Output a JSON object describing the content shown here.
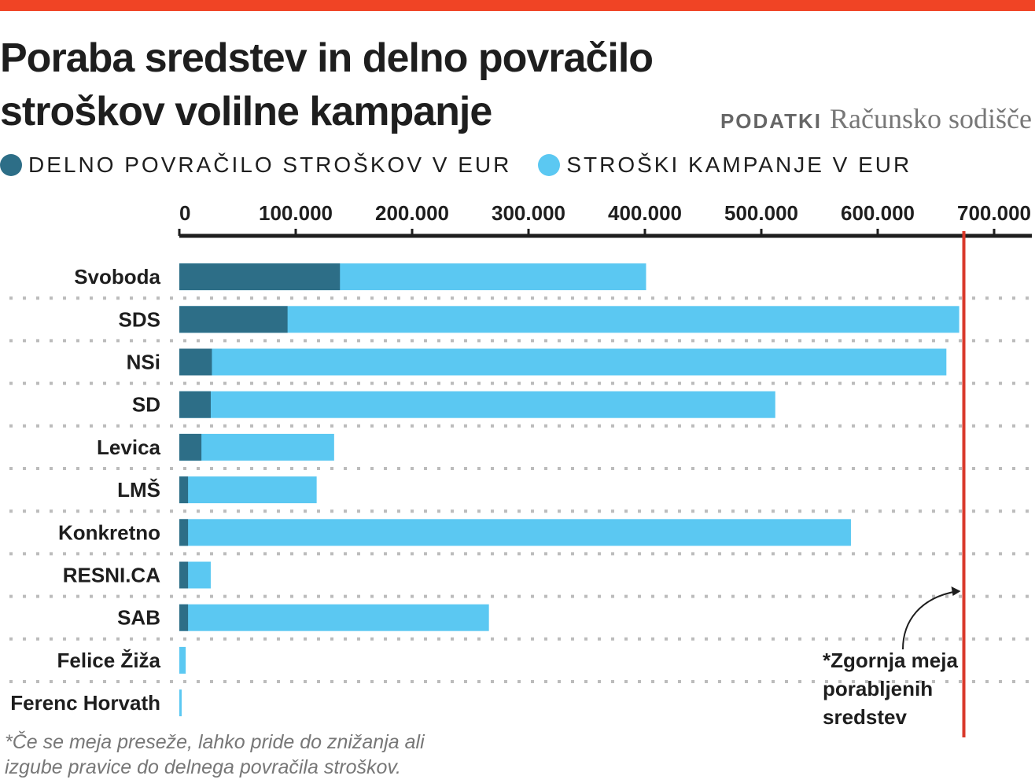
{
  "title": "Poraba sredstev in delno povračilo stroškov volilne kampanje",
  "source_label": "PODATKI",
  "source_name": "Računsko sodišče",
  "colors": {
    "top_bar": "#f04425",
    "refund": "#2d6e87",
    "cost": "#5bc8f2",
    "limit_line": "#d9382a",
    "grid": "#bcbcbc"
  },
  "chart_data": {
    "type": "bar",
    "orientation": "horizontal",
    "overlay": true,
    "categories": [
      "Svoboda",
      "SDS",
      "NSi",
      "SD",
      "Levica",
      "LMŠ",
      "Konkretno",
      "RESNI.CA",
      "SAB",
      "Felice Žiža",
      "Ferenc Horvath"
    ],
    "series": [
      {
        "name": "DELNO POVRAČILO STROŠKOV V EUR",
        "color": "#2d6e87",
        "values": [
          138000,
          93000,
          28000,
          27000,
          19000,
          7500,
          7500,
          7500,
          7500,
          0,
          0
        ]
      },
      {
        "name": "STROŠKI KAMPANJE V EUR",
        "color": "#5bc8f2",
        "values": [
          401000,
          670000,
          659000,
          512000,
          133000,
          118000,
          577000,
          27000,
          266000,
          5500,
          2000
        ]
      }
    ],
    "xlim": [
      0,
      730000
    ],
    "xticks": [
      0,
      100000,
      200000,
      300000,
      400000,
      500000,
      600000,
      700000
    ],
    "xtick_labels": [
      "0",
      "100.000",
      "200.000",
      "300.000",
      "400.000",
      "500.000",
      "600.000",
      "700.000"
    ],
    "axis_position": "top",
    "grid": "dotted row separators",
    "legend_position": "top-left",
    "reference_line": {
      "value": 674000,
      "label": "*Zgornja meja porabljenih sredstev"
    }
  },
  "annotation_lines": [
    "*Zgornja meja",
    "porabljenih",
    "sredstev"
  ],
  "footnote": "*Če se meja preseže, lahko pride do znižanja ali izgube pravice do delnega povračila stroškov."
}
